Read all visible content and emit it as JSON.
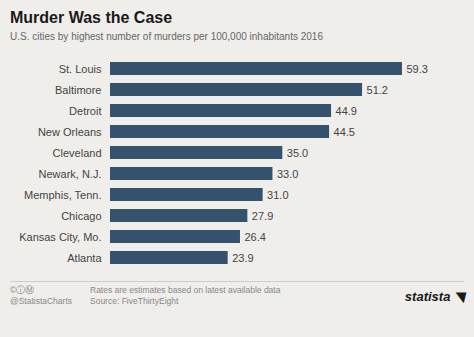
{
  "chart_data": {
    "type": "bar",
    "orientation": "horizontal",
    "title": "Murder Was the Case",
    "subtitle": "U.S. cities by highest number of murders per 100,000 inhabitants 2016",
    "categories": [
      "Atlanta",
      "Kansas City, Mo.",
      "Chicago",
      "Memphis, Tenn.",
      "Newark, N.J.",
      "Cleveland",
      "New Orleans",
      "Detroit",
      "Baltimore",
      "St. Louis"
    ],
    "values": [
      23.9,
      26.4,
      27.9,
      31.0,
      33.0,
      35.0,
      44.5,
      44.9,
      51.2,
      59.3
    ],
    "value_labels": [
      "23.9",
      "26.4",
      "27.9",
      "31.0",
      "33.0",
      "35.0",
      "44.5",
      "44.9",
      "51.2",
      "59.3"
    ],
    "color": "#34526b",
    "xlim": [
      0,
      65
    ],
    "data_labels": true,
    "tick_labels": "y",
    "grid": false,
    "annotations": [
      "©ⓘⓂ",
      "@StatistaCharts",
      "Rates are estimates based on latest available data",
      "Source: FiveThirtyEight",
      "statista",
      "◥"
    ]
  }
}
